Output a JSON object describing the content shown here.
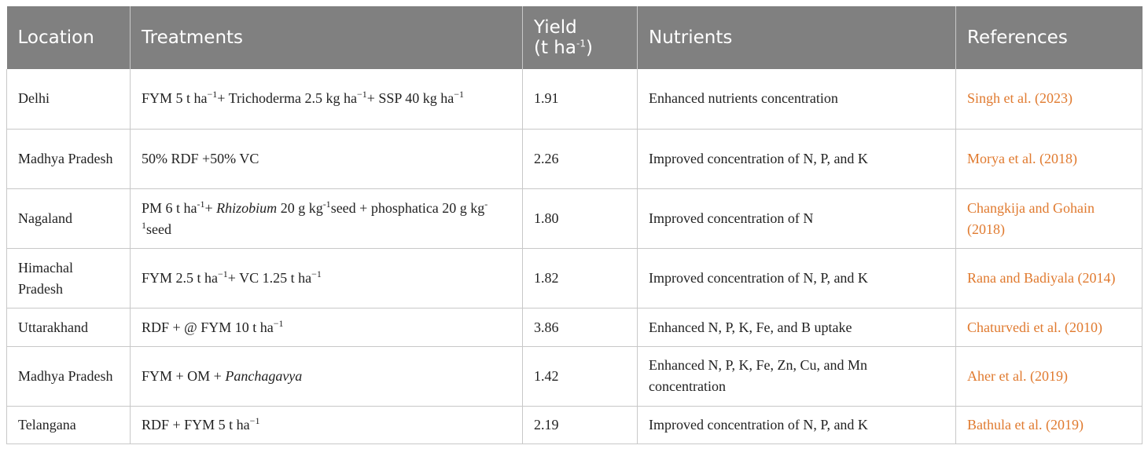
{
  "table": {
    "headers": {
      "location": "Location",
      "treatments": "Treatments",
      "yield_label": "Yield",
      "yield_unit_pre": "(t ha",
      "yield_unit_sup": "-1",
      "yield_unit_post": ")",
      "nutrients": "Nutrients",
      "references": "References"
    },
    "rows": [
      {
        "location": "Delhi",
        "treatment": [
          {
            "t": "FYM 5 t ha"
          },
          {
            "t": "−1",
            "sup": true
          },
          {
            "t": "+ Trichoderma 2.5 kg ha"
          },
          {
            "t": "−1",
            "sup": true
          },
          {
            "t": "+ SSP 40 kg ha"
          },
          {
            "t": "−1",
            "sup": true
          }
        ],
        "yield": "1.91",
        "nutrients": "Enhanced nutrients concentration",
        "reference": "Singh et al. (2023)"
      },
      {
        "location": "Madhya Pradesh",
        "treatment": [
          {
            "t": "50% RDF +50% VC"
          }
        ],
        "yield": "2.26",
        "nutrients": "Improved concentration of N, P, and K",
        "reference": "Morya et al. (2018)"
      },
      {
        "location": "Nagaland",
        "treatment": [
          {
            "t": "PM 6 t ha"
          },
          {
            "t": "-1",
            "sup": true
          },
          {
            "t": "+ "
          },
          {
            "t": "Rhizobium",
            "i": true
          },
          {
            "t": " 20 g kg"
          },
          {
            "t": "-1",
            "sup": true
          },
          {
            "t": "seed + phosphatica 20 g kg"
          },
          {
            "t": "-1",
            "sup": true
          },
          {
            "t": "seed"
          }
        ],
        "yield": "1.80",
        "nutrients": "Improved concentration of N",
        "reference": "Changkija and Gohain (2018)"
      },
      {
        "location": "Himachal Pradesh",
        "treatment": [
          {
            "t": "FYM 2.5 t ha"
          },
          {
            "t": "−1",
            "sup": true
          },
          {
            "t": "+ VC 1.25 t ha"
          },
          {
            "t": "−1",
            "sup": true
          }
        ],
        "yield": "1.82",
        "nutrients": "Improved concentration of N, P, and K",
        "reference": "Rana and Badiyala (2014)"
      },
      {
        "location": "Uttarakhand",
        "treatment": [
          {
            "t": "RDF + @ FYM 10 t ha"
          },
          {
            "t": "−1",
            "sup": true
          }
        ],
        "yield": "3.86",
        "nutrients": "Enhanced N, P, K, Fe, and B uptake",
        "reference": "Chaturvedi et al. (2010)"
      },
      {
        "location": "Madhya Pradesh",
        "treatment": [
          {
            "t": "FYM + OM + "
          },
          {
            "t": "Panchagavya",
            "i": true
          }
        ],
        "yield": "1.42",
        "nutrients": "Enhanced N, P, K, Fe, Zn, Cu, and Mn concentration",
        "reference": "Aher et al. (2019)"
      },
      {
        "location": "Telangana",
        "treatment": [
          {
            "t": "RDF + FYM 5 t ha"
          },
          {
            "t": "−1",
            "sup": true
          }
        ],
        "yield": "2.19",
        "nutrients": "Improved concentration of N, P, and K",
        "reference": "Bathula et al. (2019)"
      }
    ]
  },
  "colors": {
    "header_bg": "#808080",
    "reference_link": "#e07a2f",
    "grid_line": "#c8c8c8"
  }
}
